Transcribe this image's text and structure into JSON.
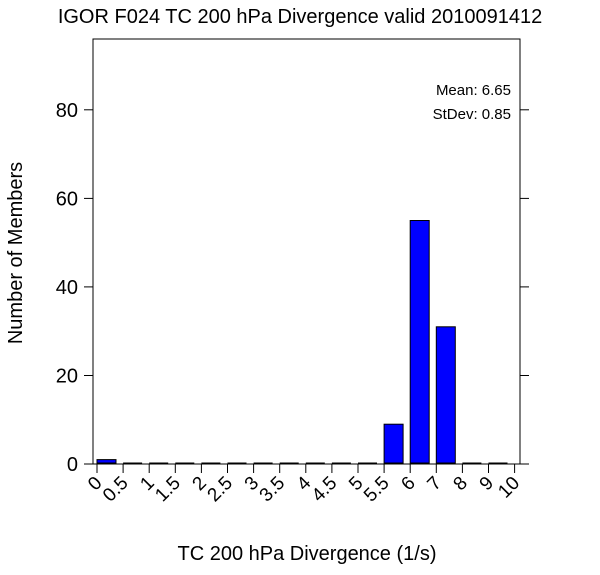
{
  "chart_data": {
    "type": "bar",
    "title": "IGOR F024 TC 200 hPa Divergence valid 2010091412",
    "xlabel": "TC 200 hPa Divergence (1/s)",
    "ylabel": "Number of Members",
    "ylim": [
      0,
      96
    ],
    "yticks": [
      0,
      20,
      40,
      60,
      80
    ],
    "x_tick_labels": [
      "0",
      "0.5",
      "1",
      "1.5",
      "2",
      "2.5",
      "3",
      "3.5",
      "4",
      "4.5",
      "5",
      "5.5",
      "6",
      "7",
      "8",
      "9",
      "10"
    ],
    "categories": [
      "0-0.5",
      "0.5-1",
      "1-1.5",
      "1.5-2",
      "2-2.5",
      "2.5-3",
      "3-3.5",
      "3.5-4",
      "4-4.5",
      "4.5-5",
      "5-5.5",
      "5.5-6",
      "6-7",
      "7-8",
      "8-9",
      "9-10"
    ],
    "values": [
      1,
      0,
      0,
      0,
      0,
      0,
      0,
      0,
      0,
      0,
      0,
      9,
      55,
      31,
      0,
      0
    ],
    "bar_color": "#0000ff",
    "grid": false,
    "stats": {
      "mean_text": "Mean: 6.65",
      "stdev_text": "StDev: 0.85"
    },
    "stats_placement": "top-right"
  }
}
